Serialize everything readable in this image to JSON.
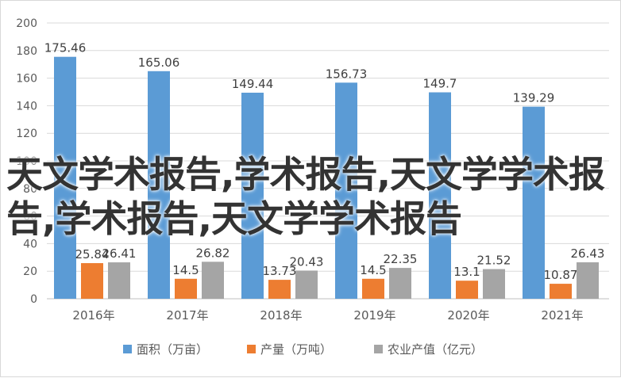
{
  "overlay_text": "天文学术报告,学术报告,天文学学术报告,学术报告,天文学学术报告",
  "chart_data": {
    "type": "bar",
    "categories": [
      "2016年",
      "2017年",
      "2018年",
      "2019年",
      "2020年",
      "2021年"
    ],
    "series": [
      {
        "name": "面积（万亩）",
        "color": "#5b9bd5",
        "values": [
          175.46,
          165.06,
          149.44,
          156.73,
          149.7,
          139.29
        ],
        "labels": [
          "175.46",
          "165.06",
          "149.44",
          "156.73",
          "149.7",
          "139.29"
        ]
      },
      {
        "name": "产量（万吨）",
        "color": "#ed7d31",
        "values": [
          25.84,
          14.5,
          13.73,
          14.5,
          13.1,
          10.87
        ],
        "labels": [
          "25.84",
          "14.5",
          "13.73",
          "14.5",
          "13.1",
          "10.87"
        ]
      },
      {
        "name": "农业产值（亿元）",
        "color": "#a5a5a5",
        "values": [
          26.41,
          26.82,
          20.43,
          22.35,
          21.52,
          26.43
        ],
        "labels": [
          "26.41",
          "26.82",
          "20.43",
          "22.35",
          "21.52",
          "26.43"
        ]
      }
    ],
    "yticks": [
      "0",
      "20",
      "40",
      "60",
      "80",
      "100",
      "120",
      "140",
      "160",
      "180",
      "200"
    ],
    "ylim": [
      0,
      200
    ],
    "grid": true,
    "legend": "bottom",
    "colors": {
      "grid": "#d9d9d9",
      "text": "#595959",
      "label": "#404040"
    }
  }
}
